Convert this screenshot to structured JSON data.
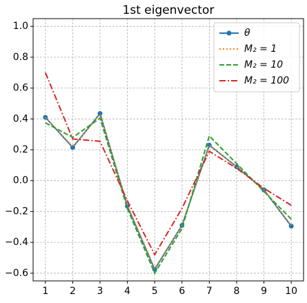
{
  "chart_data": {
    "type": "line",
    "title": "1st eigenvector",
    "x": [
      1,
      2,
      3,
      4,
      5,
      6,
      7,
      8,
      9,
      10
    ],
    "series": [
      {
        "name": "θ",
        "color": "#1f77b4",
        "style": "solid",
        "marker": "circle",
        "values": [
          0.41,
          0.215,
          0.435,
          -0.165,
          -0.575,
          -0.29,
          0.23,
          0.09,
          -0.06,
          -0.295
        ]
      },
      {
        "name": "M₂ = 1",
        "color": "#ff7f0e",
        "style": "dotted",
        "values": [
          0.41,
          0.22,
          0.43,
          -0.16,
          -0.57,
          -0.29,
          0.23,
          0.09,
          -0.06,
          -0.29
        ]
      },
      {
        "name": "M₂ = 10",
        "color": "#2ca02c",
        "style": "dashed",
        "values": [
          0.375,
          0.28,
          0.405,
          -0.18,
          -0.6,
          -0.31,
          0.29,
          0.11,
          -0.07,
          -0.25
        ]
      },
      {
        "name": "M₂ = 100",
        "color": "#d62728",
        "style": "dashdot",
        "values": [
          0.7,
          0.27,
          0.255,
          -0.13,
          -0.48,
          -0.18,
          0.19,
          0.08,
          -0.05,
          -0.16
        ]
      }
    ],
    "xlim": [
      0.55,
      10.45
    ],
    "xticks": [
      1,
      2,
      3,
      4,
      5,
      6,
      7,
      8,
      9,
      10
    ],
    "ylim": [
      -0.65,
      1.05
    ],
    "yticks": [
      {
        "value": -0.6,
        "label": "−0.6"
      },
      {
        "value": -0.4,
        "label": "−0.4"
      },
      {
        "value": -0.2,
        "label": "−0.2"
      },
      {
        "value": 0,
        "label": "0.0"
      },
      {
        "value": 0.2,
        "label": "0.2"
      },
      {
        "value": 0.4,
        "label": "0.4"
      },
      {
        "value": 0.6,
        "label": "0.6"
      },
      {
        "value": 0.8,
        "label": "0.8"
      },
      {
        "value": 1.0,
        "label": "1.0"
      }
    ],
    "grid": true,
    "legend": "upper right"
  }
}
